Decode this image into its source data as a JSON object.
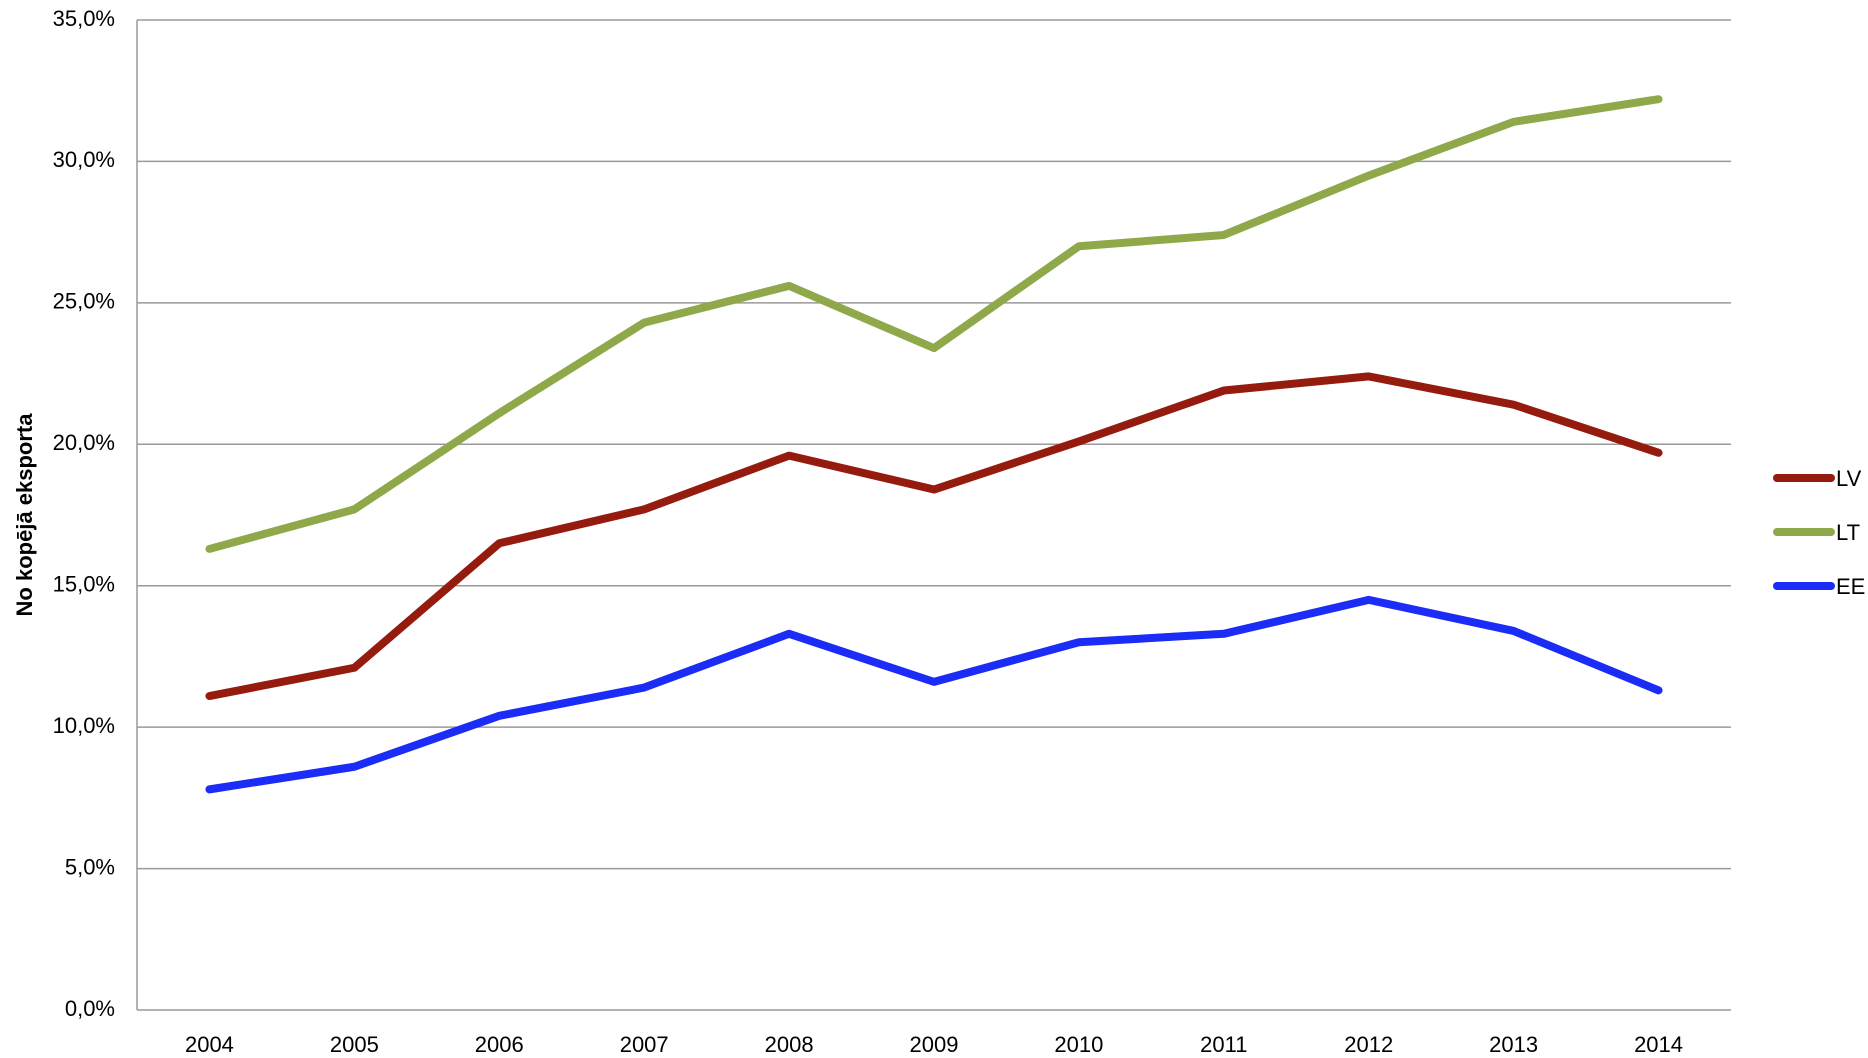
{
  "chart_data": {
    "type": "line",
    "y_label": "No kopējā eksporta",
    "categories": [
      "2004",
      "2005",
      "2006",
      "2007",
      "2008",
      "2009",
      "2010",
      "2011",
      "2012",
      "2013",
      "2014"
    ],
    "series": [
      {
        "name": "LV",
        "color": "#951b0f",
        "values": [
          11.1,
          12.1,
          16.5,
          17.7,
          19.6,
          18.4,
          20.1,
          21.9,
          22.4,
          21.4,
          19.7
        ]
      },
      {
        "name": "LT",
        "color": "#8ea84a",
        "values": [
          16.3,
          17.7,
          21.1,
          24.3,
          25.6,
          23.4,
          27.0,
          27.4,
          29.5,
          31.4,
          32.2
        ]
      },
      {
        "name": "EE",
        "color": "#1a2cf5",
        "values": [
          7.8,
          8.6,
          10.4,
          11.4,
          13.3,
          11.6,
          13.0,
          13.3,
          14.5,
          13.4,
          11.3
        ]
      }
    ],
    "ylim": [
      0,
      35
    ],
    "yticks": [
      {
        "value": 0,
        "label": "0,0%"
      },
      {
        "value": 5,
        "label": "5,0%"
      },
      {
        "value": 10,
        "label": "10,0%"
      },
      {
        "value": 15,
        "label": "15,0%"
      },
      {
        "value": 20,
        "label": "20,0%"
      },
      {
        "value": 25,
        "label": "25,0%"
      },
      {
        "value": 30,
        "label": "30,0%"
      },
      {
        "value": 35,
        "label": "35,0%"
      }
    ],
    "grid": true,
    "legend": "right"
  }
}
